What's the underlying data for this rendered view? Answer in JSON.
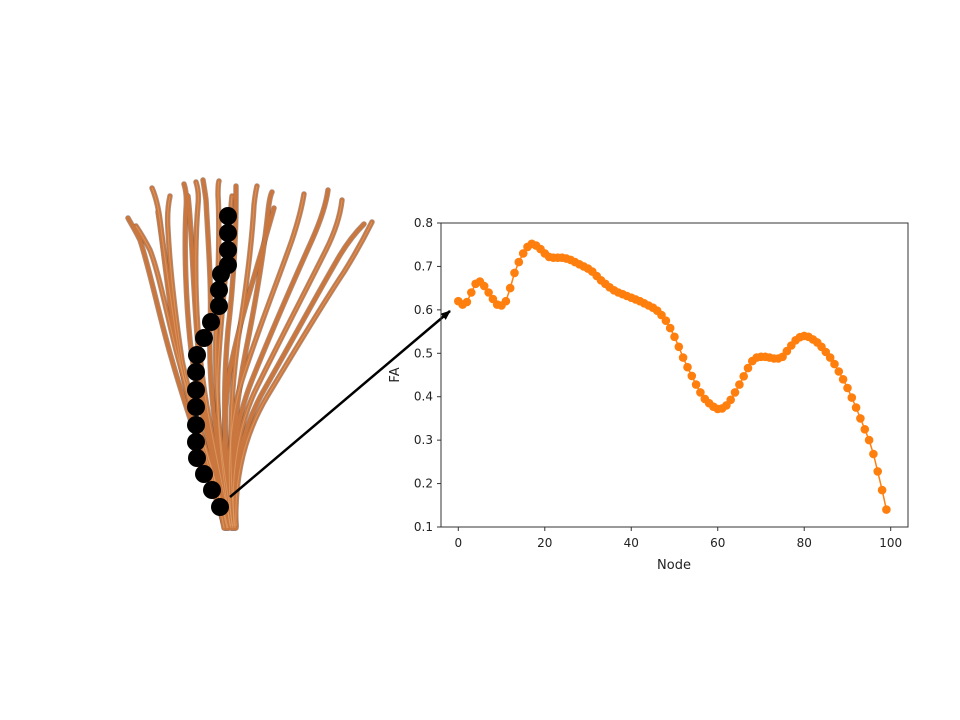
{
  "figure": {
    "fiber_color": "#c9773e",
    "fiber_dark_color": "#6b3717",
    "node_color": "#000000",
    "arrow_color": "#000000"
  },
  "chart_data": {
    "type": "line",
    "xlabel": "Node",
    "ylabel": "FA",
    "xlim": [
      -4,
      104
    ],
    "ylim": [
      0.1,
      0.8
    ],
    "xticks": [
      0,
      20,
      40,
      60,
      80,
      100
    ],
    "yticks": [
      0.1,
      0.2,
      0.3,
      0.4,
      0.5,
      0.6,
      0.7,
      0.8
    ],
    "xtick_labels": [
      "0",
      "20",
      "40",
      "60",
      "80",
      "100"
    ],
    "ytick_labels": [
      "0.1",
      "0.2",
      "0.3",
      "0.4",
      "0.5",
      "0.6",
      "0.7",
      "0.8"
    ],
    "grid": false,
    "marker": "circle",
    "color": "#ff7f0e",
    "series": [
      {
        "x": [
          0,
          1,
          2,
          3,
          4,
          5,
          6,
          7,
          8,
          9,
          10,
          11,
          12,
          13,
          14,
          15,
          16,
          17,
          18,
          19,
          20,
          21,
          22,
          23,
          24,
          25,
          26,
          27,
          28,
          29,
          30,
          31,
          32,
          33,
          34,
          35,
          36,
          37,
          38,
          39,
          40,
          41,
          42,
          43,
          44,
          45,
          46,
          47,
          48,
          49,
          50,
          51,
          52,
          53,
          54,
          55,
          56,
          57,
          58,
          59,
          60,
          61,
          62,
          63,
          64,
          65,
          66,
          67,
          68,
          69,
          70,
          71,
          72,
          73,
          74,
          75,
          76,
          77,
          78,
          79,
          80,
          81,
          82,
          83,
          84,
          85,
          86,
          87,
          88,
          89,
          90,
          91,
          92,
          93,
          94,
          95,
          96,
          97,
          98,
          99
        ],
        "y": [
          0.62,
          0.612,
          0.618,
          0.64,
          0.66,
          0.665,
          0.655,
          0.64,
          0.625,
          0.612,
          0.61,
          0.62,
          0.65,
          0.685,
          0.71,
          0.73,
          0.745,
          0.752,
          0.748,
          0.74,
          0.73,
          0.722,
          0.72,
          0.72,
          0.72,
          0.718,
          0.715,
          0.71,
          0.705,
          0.7,
          0.695,
          0.688,
          0.678,
          0.668,
          0.66,
          0.652,
          0.645,
          0.64,
          0.636,
          0.632,
          0.628,
          0.624,
          0.62,
          0.615,
          0.61,
          0.605,
          0.598,
          0.588,
          0.575,
          0.558,
          0.538,
          0.515,
          0.49,
          0.468,
          0.448,
          0.428,
          0.41,
          0.395,
          0.385,
          0.377,
          0.372,
          0.373,
          0.38,
          0.393,
          0.41,
          0.428,
          0.447,
          0.466,
          0.482,
          0.49,
          0.492,
          0.492,
          0.49,
          0.488,
          0.488,
          0.492,
          0.505,
          0.518,
          0.53,
          0.537,
          0.54,
          0.538,
          0.532,
          0.525,
          0.515,
          0.503,
          0.49,
          0.475,
          0.458,
          0.44,
          0.42,
          0.398,
          0.375,
          0.35,
          0.325,
          0.3,
          0.268,
          0.228,
          0.185,
          0.14
        ]
      }
    ]
  }
}
